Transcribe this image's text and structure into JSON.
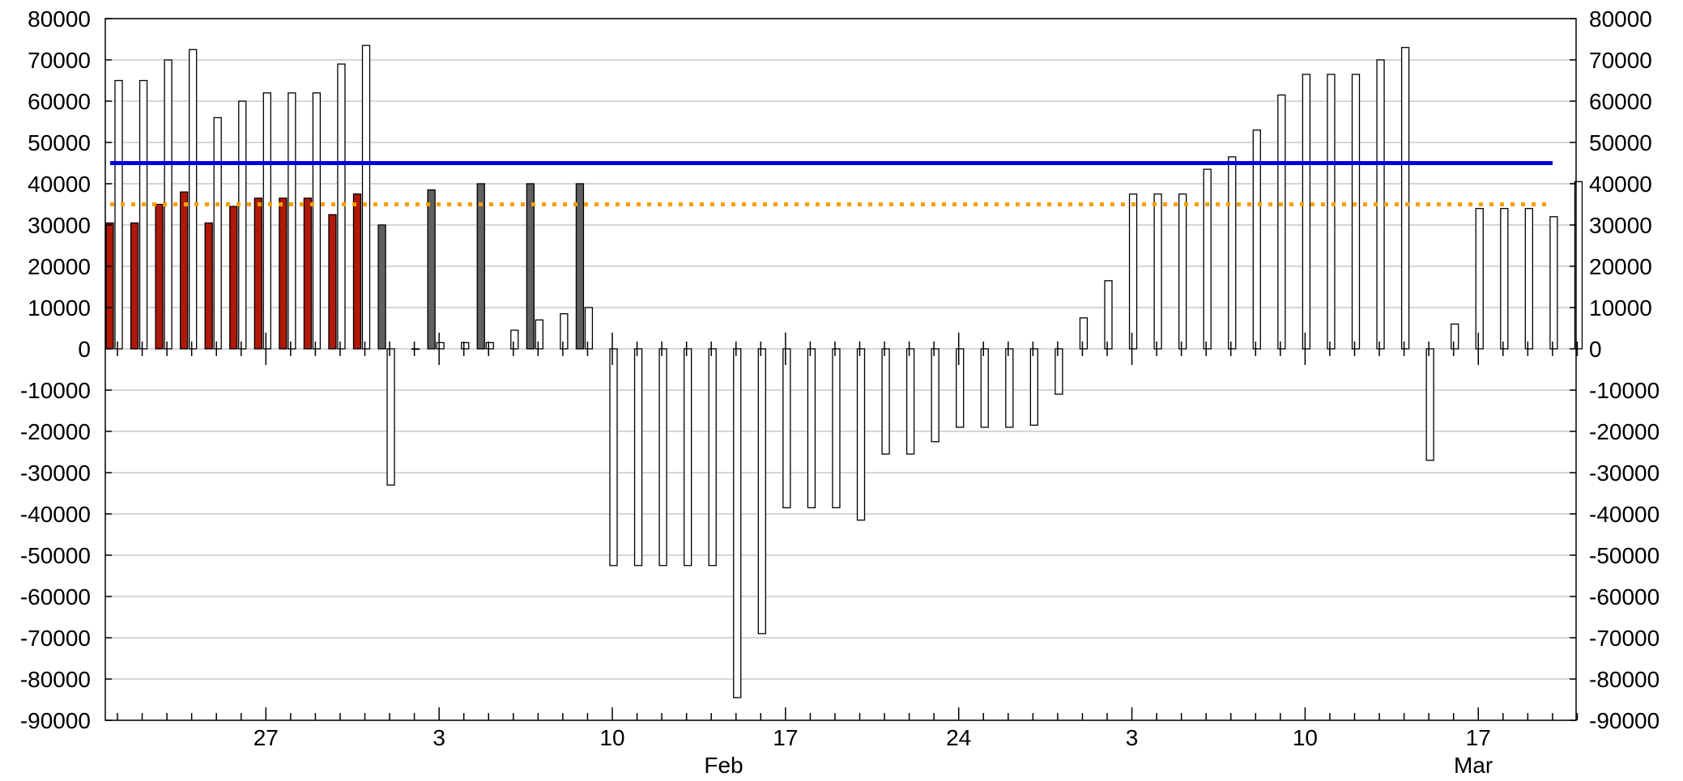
{
  "chart_data": {
    "type": "bar",
    "title": "",
    "xlabel": "",
    "ylabel": "",
    "ylim": [
      -90000,
      80000
    ],
    "y_ticks": [
      80000,
      70000,
      60000,
      50000,
      40000,
      30000,
      20000,
      10000,
      0,
      -10000,
      -20000,
      -30000,
      -40000,
      -50000,
      -60000,
      -70000,
      -80000,
      -90000
    ],
    "y_tick_labels": [
      "80000",
      "70000",
      "60000",
      "50000",
      "40000",
      "30000",
      "20000",
      "10000",
      "0",
      "-10000",
      "-20000",
      "-30000",
      "-40000",
      "-50000",
      "-60000",
      "-70000",
      "-80000",
      "-90000"
    ],
    "grid": true,
    "x_tick_labels": [
      {
        "day": 6,
        "label": "27"
      },
      {
        "day": 13,
        "label": "3"
      },
      {
        "day": 20,
        "label": "10"
      },
      {
        "day": 27,
        "label": "17"
      },
      {
        "day": 34,
        "label": "24"
      },
      {
        "day": 41,
        "label": "3"
      },
      {
        "day": 48,
        "label": "10"
      },
      {
        "day": 55,
        "label": "17"
      }
    ],
    "month_labels": [
      {
        "day": 24.5,
        "label": "Feb"
      },
      {
        "day": 54.8,
        "label": "Mar"
      }
    ],
    "reference_lines": [
      {
        "value": 45000,
        "color": "#0000dd",
        "style": "solid"
      },
      {
        "value": 35000,
        "color": "#f5a000",
        "style": "dotted"
      }
    ],
    "colors": {
      "white_bar": "#ffffff",
      "red_bar": "#b01808",
      "gray_bar": "#606060",
      "grid": "#c8c8c8"
    },
    "series": [
      {
        "kind": "white",
        "values": [
          65000,
          65000,
          70000,
          72500,
          56000,
          60000,
          62000,
          62000,
          62000,
          69000,
          73500,
          -33000,
          0,
          1500,
          1500,
          1500,
          4500,
          7000,
          8500,
          10000,
          -52500,
          -52500,
          -52500,
          -52500,
          -52500,
          -84500,
          -69000,
          -38500,
          -38500,
          -38500,
          -41500,
          -25500,
          -25500,
          -22500,
          -19000,
          -19000,
          -19000,
          -18500,
          -11000,
          7500,
          16500,
          37500,
          37500,
          37500,
          43500,
          46500,
          53000,
          61500,
          66500,
          66500,
          66500,
          70000,
          73000,
          -27000,
          6000,
          34000,
          34000,
          34000,
          32000,
          40500
        ]
      },
      {
        "kind": "red",
        "values": [
          30500,
          30500,
          35000,
          38000,
          30500,
          34500,
          36500,
          36500,
          36500,
          32500,
          37500
        ]
      },
      {
        "kind": "gray",
        "values": [
          30000,
          38500,
          40000,
          40000,
          40000
        ]
      }
    ]
  }
}
